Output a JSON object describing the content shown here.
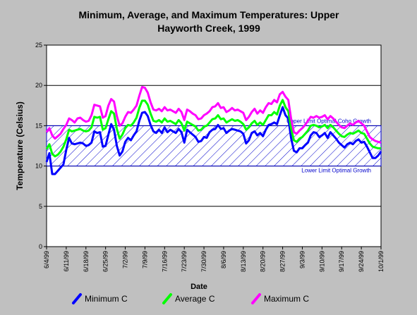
{
  "chart_data": {
    "type": "line",
    "title_line1": "Minimum, Average, and Maximum Temperatures:  Upper",
    "title_line2": "Hayworth Creek, 1999",
    "xlabel": "Date",
    "ylabel": "Temperature (Celsius)",
    "ylim": [
      0,
      25
    ],
    "yticks": [
      "0",
      "5",
      "10",
      "15",
      "20",
      "25"
    ],
    "x_start": "6/4/99",
    "x_end": "10/1/99",
    "xtick_labels": [
      "6/4/99",
      "6/11/99",
      "6/18/99",
      "6/25/99",
      "7/2/99",
      "7/9/99",
      "7/16/99",
      "7/23/99",
      "7/30/99",
      "8/6/99",
      "8/13/99",
      "8/20/99",
      "8/27/99",
      "9/3/99",
      "9/10/99",
      "9/17/99",
      "9/24/99",
      "10/1/99"
    ],
    "grid": true,
    "legend_position": "bottom",
    "optimal_band": {
      "lower": 10,
      "upper": 15,
      "upper_label": "Upper Limit Optimal Coho Growth",
      "lower_label": "Lower Limit Optimal Growth",
      "color": "#0000cc"
    },
    "x": [
      "6/4/99",
      "6/5/99",
      "6/6/99",
      "6/7/99",
      "6/8/99",
      "6/9/99",
      "6/10/99",
      "6/11/99",
      "6/12/99",
      "6/13/99",
      "6/14/99",
      "6/15/99",
      "6/16/99",
      "6/17/99",
      "6/18/99",
      "6/19/99",
      "6/20/99",
      "6/21/99",
      "6/22/99",
      "6/23/99",
      "6/24/99",
      "6/25/99",
      "6/26/99",
      "6/27/99",
      "6/28/99",
      "6/29/99",
      "6/30/99",
      "7/1/99",
      "7/2/99",
      "7/3/99",
      "7/4/99",
      "7/5/99",
      "7/6/99",
      "7/7/99",
      "7/8/99",
      "7/9/99",
      "7/10/99",
      "7/11/99",
      "7/12/99",
      "7/13/99",
      "7/14/99",
      "7/15/99",
      "7/16/99",
      "7/17/99",
      "7/18/99",
      "7/19/99",
      "7/20/99",
      "7/21/99",
      "7/22/99",
      "7/23/99",
      "7/24/99",
      "7/25/99",
      "7/26/99",
      "7/27/99",
      "7/28/99",
      "7/29/99",
      "7/30/99",
      "7/31/99",
      "8/1/99",
      "8/2/99",
      "8/3/99",
      "8/4/99",
      "8/5/99",
      "8/6/99",
      "8/7/99",
      "8/8/99",
      "8/9/99",
      "8/10/99",
      "8/11/99",
      "8/12/99",
      "8/13/99",
      "8/14/99",
      "8/15/99",
      "8/16/99",
      "8/17/99",
      "8/18/99",
      "8/19/99",
      "8/20/99",
      "8/21/99",
      "8/22/99",
      "8/23/99",
      "8/24/99",
      "8/25/99",
      "8/26/99",
      "8/27/99",
      "8/28/99",
      "8/29/99",
      "8/30/99",
      "8/31/99",
      "9/1/99",
      "9/2/99",
      "9/3/99",
      "9/4/99",
      "9/5/99",
      "9/6/99",
      "9/7/99",
      "9/8/99",
      "9/9/99",
      "9/10/99",
      "9/11/99",
      "9/12/99",
      "9/13/99",
      "9/14/99",
      "9/15/99",
      "9/16/99",
      "9/17/99",
      "9/18/99",
      "9/19/99",
      "9/20/99",
      "9/21/99",
      "9/22/99",
      "9/23/99",
      "9/24/99",
      "9/25/99",
      "9/26/99",
      "9/27/99",
      "9/28/99",
      "9/29/99",
      "9/30/99",
      "10/1/99"
    ],
    "series": [
      {
        "name": "Minimum C",
        "color": "#0000ff",
        "values": [
          10.5,
          11.6,
          9.0,
          9.0,
          9.4,
          9.8,
          10.2,
          12.0,
          13.5,
          12.8,
          12.7,
          12.8,
          12.9,
          12.8,
          12.5,
          12.6,
          12.9,
          14.3,
          14.1,
          14.2,
          12.4,
          12.5,
          13.9,
          15.2,
          14.5,
          12.5,
          11.3,
          11.8,
          13.0,
          13.5,
          13.2,
          13.8,
          14.3,
          15.6,
          16.6,
          16.7,
          16.2,
          15.1,
          14.3,
          14.1,
          14.5,
          14.1,
          14.8,
          14.2,
          14.5,
          14.3,
          14.1,
          14.6,
          14.2,
          12.9,
          14.5,
          14.2,
          13.9,
          13.6,
          13.0,
          13.1,
          13.6,
          13.5,
          14.2,
          14.5,
          14.6,
          15.1,
          14.6,
          14.7,
          14.1,
          14.4,
          14.6,
          14.5,
          14.4,
          14.3,
          14.0,
          12.8,
          13.2,
          14.1,
          14.3,
          13.8,
          14.1,
          13.7,
          14.5,
          15.1,
          15.2,
          15.4,
          15.2,
          16.3,
          17.3,
          16.3,
          15.9,
          13.5,
          11.9,
          11.7,
          12.2,
          12.2,
          12.6,
          12.9,
          13.8,
          14.2,
          14.1,
          13.6,
          13.8,
          14.1,
          13.5,
          14.2,
          13.8,
          13.4,
          12.9,
          12.6,
          12.3,
          12.7,
          12.9,
          12.7,
          13.1,
          13.3,
          12.9,
          13.0,
          12.4,
          11.7,
          11.0,
          11.0,
          11.3,
          11.8
        ]
      },
      {
        "name": "Average C",
        "color": "#00ff00",
        "values": [
          12.1,
          12.7,
          11.5,
          11.2,
          11.4,
          11.8,
          12.4,
          13.3,
          14.5,
          14.3,
          14.4,
          14.5,
          14.6,
          14.4,
          14.3,
          14.4,
          14.8,
          16.1,
          16.0,
          16.1,
          14.5,
          14.7,
          15.8,
          16.8,
          16.5,
          14.6,
          13.4,
          13.9,
          14.7,
          15.1,
          15.0,
          15.4,
          16.0,
          17.2,
          18.1,
          18.1,
          17.6,
          16.5,
          15.6,
          15.5,
          15.7,
          15.4,
          15.9,
          15.5,
          15.6,
          15.4,
          15.2,
          15.7,
          15.3,
          14.4,
          15.5,
          15.3,
          15.1,
          14.9,
          14.4,
          14.5,
          14.9,
          15.0,
          15.4,
          15.8,
          15.9,
          16.3,
          15.8,
          15.9,
          15.4,
          15.6,
          15.8,
          15.6,
          15.7,
          15.5,
          15.2,
          14.5,
          14.8,
          15.3,
          15.6,
          15.1,
          15.4,
          15.1,
          15.7,
          16.3,
          16.3,
          16.7,
          16.4,
          17.5,
          18.2,
          17.3,
          16.8,
          14.7,
          13.2,
          13.0,
          13.4,
          13.6,
          14.0,
          14.4,
          15.0,
          15.1,
          15.0,
          14.8,
          14.9,
          15.1,
          14.7,
          15.1,
          14.8,
          14.4,
          14.0,
          13.7,
          13.6,
          13.9,
          14.1,
          14.0,
          14.2,
          14.4,
          14.1,
          14.0,
          13.4,
          12.8,
          12.4,
          12.3,
          12.2,
          12.2
        ]
      },
      {
        "name": "Maximum C",
        "color": "#ff00ff",
        "values": [
          14.2,
          14.7,
          13.8,
          13.4,
          13.7,
          14.0,
          14.6,
          15.1,
          15.9,
          15.7,
          15.4,
          15.9,
          16.0,
          15.7,
          15.5,
          15.6,
          16.3,
          17.6,
          17.5,
          17.4,
          16.0,
          16.2,
          17.5,
          18.3,
          18.0,
          16.2,
          15.0,
          15.3,
          16.1,
          16.7,
          16.6,
          17.0,
          17.5,
          18.7,
          19.8,
          19.7,
          19.1,
          17.9,
          17.0,
          16.9,
          17.1,
          16.8,
          17.3,
          16.9,
          17.0,
          16.8,
          16.6,
          17.1,
          16.7,
          15.7,
          17.0,
          16.8,
          16.5,
          16.3,
          15.8,
          15.9,
          16.3,
          16.5,
          16.8,
          17.3,
          17.4,
          17.8,
          17.2,
          17.3,
          16.7,
          16.9,
          17.2,
          16.9,
          17.0,
          16.8,
          16.6,
          15.7,
          16.1,
          16.7,
          17.1,
          16.5,
          16.9,
          16.6,
          17.3,
          17.8,
          17.7,
          18.2,
          17.9,
          18.9,
          19.2,
          18.6,
          18.2,
          15.9,
          14.2,
          14.0,
          14.4,
          14.7,
          15.1,
          15.6,
          16.1,
          16.0,
          16.2,
          16.0,
          16.1,
          16.3,
          15.8,
          16.2,
          15.9,
          15.5,
          15.1,
          14.8,
          14.7,
          15.0,
          15.3,
          15.1,
          15.4,
          15.6,
          15.3,
          15.0,
          14.3,
          13.6,
          13.3,
          13.1,
          13.0,
          12.9
        ]
      }
    ]
  }
}
